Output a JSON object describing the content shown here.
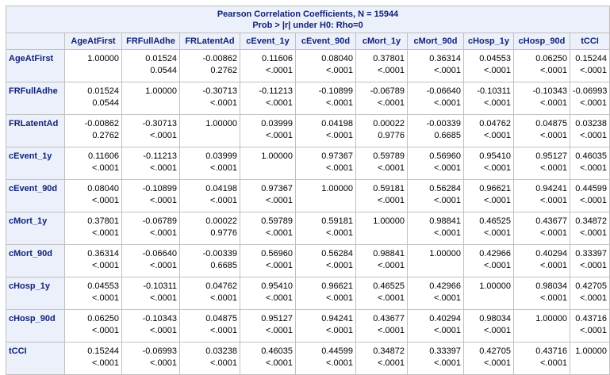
{
  "title": "Pearson Correlation Coefficients, N = 15944",
  "subtitle": "Prob > |r| under H0: Rho=0",
  "variables": [
    "AgeAtFirst",
    "FRFullAdhe",
    "FRLatentAd",
    "cEvent_1y",
    "cEvent_90d",
    "cMort_1y",
    "cMort_90d",
    "cHosp_1y",
    "cHosp_90d",
    "tCCI"
  ],
  "rows": [
    {
      "label": "AgeAtFirst",
      "cells": [
        {
          "r": "1.00000",
          "p": ""
        },
        {
          "r": "0.01524",
          "p": "0.0544"
        },
        {
          "r": "-0.00862",
          "p": "0.2762"
        },
        {
          "r": "0.11606",
          "p": "<.0001"
        },
        {
          "r": "0.08040",
          "p": "<.0001"
        },
        {
          "r": "0.37801",
          "p": "<.0001"
        },
        {
          "r": "0.36314",
          "p": "<.0001"
        },
        {
          "r": "0.04553",
          "p": "<.0001"
        },
        {
          "r": "0.06250",
          "p": "<.0001"
        },
        {
          "r": "0.15244",
          "p": "<.0001"
        }
      ]
    },
    {
      "label": "FRFullAdhe",
      "cells": [
        {
          "r": "0.01524",
          "p": "0.0544"
        },
        {
          "r": "1.00000",
          "p": ""
        },
        {
          "r": "-0.30713",
          "p": "<.0001"
        },
        {
          "r": "-0.11213",
          "p": "<.0001"
        },
        {
          "r": "-0.10899",
          "p": "<.0001"
        },
        {
          "r": "-0.06789",
          "p": "<.0001"
        },
        {
          "r": "-0.06640",
          "p": "<.0001"
        },
        {
          "r": "-0.10311",
          "p": "<.0001"
        },
        {
          "r": "-0.10343",
          "p": "<.0001"
        },
        {
          "r": "-0.06993",
          "p": "<.0001"
        }
      ]
    },
    {
      "label": "FRLatentAd",
      "cells": [
        {
          "r": "-0.00862",
          "p": "0.2762"
        },
        {
          "r": "-0.30713",
          "p": "<.0001"
        },
        {
          "r": "1.00000",
          "p": ""
        },
        {
          "r": "0.03999",
          "p": "<.0001"
        },
        {
          "r": "0.04198",
          "p": "<.0001"
        },
        {
          "r": "0.00022",
          "p": "0.9776"
        },
        {
          "r": "-0.00339",
          "p": "0.6685"
        },
        {
          "r": "0.04762",
          "p": "<.0001"
        },
        {
          "r": "0.04875",
          "p": "<.0001"
        },
        {
          "r": "0.03238",
          "p": "<.0001"
        }
      ]
    },
    {
      "label": "cEvent_1y",
      "cells": [
        {
          "r": "0.11606",
          "p": "<.0001"
        },
        {
          "r": "-0.11213",
          "p": "<.0001"
        },
        {
          "r": "0.03999",
          "p": "<.0001"
        },
        {
          "r": "1.00000",
          "p": ""
        },
        {
          "r": "0.97367",
          "p": "<.0001"
        },
        {
          "r": "0.59789",
          "p": "<.0001"
        },
        {
          "r": "0.56960",
          "p": "<.0001"
        },
        {
          "r": "0.95410",
          "p": "<.0001"
        },
        {
          "r": "0.95127",
          "p": "<.0001"
        },
        {
          "r": "0.46035",
          "p": "<.0001"
        }
      ]
    },
    {
      "label": "cEvent_90d",
      "cells": [
        {
          "r": "0.08040",
          "p": "<.0001"
        },
        {
          "r": "-0.10899",
          "p": "<.0001"
        },
        {
          "r": "0.04198",
          "p": "<.0001"
        },
        {
          "r": "0.97367",
          "p": "<.0001"
        },
        {
          "r": "1.00000",
          "p": ""
        },
        {
          "r": "0.59181",
          "p": "<.0001"
        },
        {
          "r": "0.56284",
          "p": "<.0001"
        },
        {
          "r": "0.96621",
          "p": "<.0001"
        },
        {
          "r": "0.94241",
          "p": "<.0001"
        },
        {
          "r": "0.44599",
          "p": "<.0001"
        }
      ]
    },
    {
      "label": "cMort_1y",
      "cells": [
        {
          "r": "0.37801",
          "p": "<.0001"
        },
        {
          "r": "-0.06789",
          "p": "<.0001"
        },
        {
          "r": "0.00022",
          "p": "0.9776"
        },
        {
          "r": "0.59789",
          "p": "<.0001"
        },
        {
          "r": "0.59181",
          "p": "<.0001"
        },
        {
          "r": "1.00000",
          "p": ""
        },
        {
          "r": "0.98841",
          "p": "<.0001"
        },
        {
          "r": "0.46525",
          "p": "<.0001"
        },
        {
          "r": "0.43677",
          "p": "<.0001"
        },
        {
          "r": "0.34872",
          "p": "<.0001"
        }
      ]
    },
    {
      "label": "cMort_90d",
      "cells": [
        {
          "r": "0.36314",
          "p": "<.0001"
        },
        {
          "r": "-0.06640",
          "p": "<.0001"
        },
        {
          "r": "-0.00339",
          "p": "0.6685"
        },
        {
          "r": "0.56960",
          "p": "<.0001"
        },
        {
          "r": "0.56284",
          "p": "<.0001"
        },
        {
          "r": "0.98841",
          "p": "<.0001"
        },
        {
          "r": "1.00000",
          "p": ""
        },
        {
          "r": "0.42966",
          "p": "<.0001"
        },
        {
          "r": "0.40294",
          "p": "<.0001"
        },
        {
          "r": "0.33397",
          "p": "<.0001"
        }
      ]
    },
    {
      "label": "cHosp_1y",
      "cells": [
        {
          "r": "0.04553",
          "p": "<.0001"
        },
        {
          "r": "-0.10311",
          "p": "<.0001"
        },
        {
          "r": "0.04762",
          "p": "<.0001"
        },
        {
          "r": "0.95410",
          "p": "<.0001"
        },
        {
          "r": "0.96621",
          "p": "<.0001"
        },
        {
          "r": "0.46525",
          "p": "<.0001"
        },
        {
          "r": "0.42966",
          "p": "<.0001"
        },
        {
          "r": "1.00000",
          "p": ""
        },
        {
          "r": "0.98034",
          "p": "<.0001"
        },
        {
          "r": "0.42705",
          "p": "<.0001"
        }
      ]
    },
    {
      "label": "cHosp_90d",
      "cells": [
        {
          "r": "0.06250",
          "p": "<.0001"
        },
        {
          "r": "-0.10343",
          "p": "<.0001"
        },
        {
          "r": "0.04875",
          "p": "<.0001"
        },
        {
          "r": "0.95127",
          "p": "<.0001"
        },
        {
          "r": "0.94241",
          "p": "<.0001"
        },
        {
          "r": "0.43677",
          "p": "<.0001"
        },
        {
          "r": "0.40294",
          "p": "<.0001"
        },
        {
          "r": "0.98034",
          "p": "<.0001"
        },
        {
          "r": "1.00000",
          "p": ""
        },
        {
          "r": "0.43716",
          "p": "<.0001"
        }
      ]
    },
    {
      "label": "tCCI",
      "cells": [
        {
          "r": "0.15244",
          "p": "<.0001"
        },
        {
          "r": "-0.06993",
          "p": "<.0001"
        },
        {
          "r": "0.03238",
          "p": "<.0001"
        },
        {
          "r": "0.46035",
          "p": "<.0001"
        },
        {
          "r": "0.44599",
          "p": "<.0001"
        },
        {
          "r": "0.34872",
          "p": "<.0001"
        },
        {
          "r": "0.33397",
          "p": "<.0001"
        },
        {
          "r": "0.42705",
          "p": "<.0001"
        },
        {
          "r": "0.43716",
          "p": "<.0001"
        },
        {
          "r": "1.00000",
          "p": ""
        }
      ]
    }
  ],
  "colors": {
    "header_bg": "#ebf0fa",
    "header_text": "#112277",
    "border": "#c0c0c0",
    "cell_bg": "#ffffff"
  }
}
